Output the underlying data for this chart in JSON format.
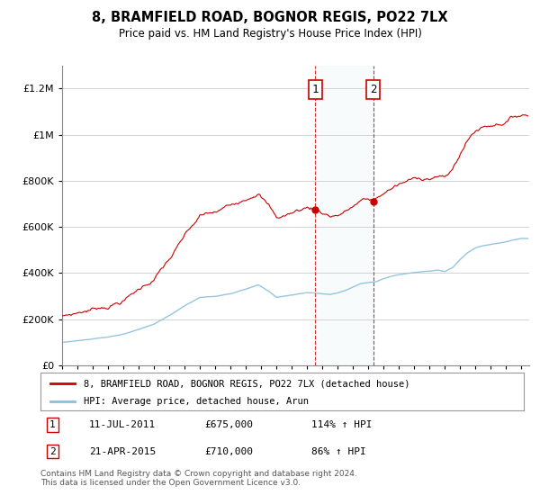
{
  "title": "8, BRAMFIELD ROAD, BOGNOR REGIS, PO22 7LX",
  "subtitle": "Price paid vs. HM Land Registry's House Price Index (HPI)",
  "hpi_label": "HPI: Average price, detached house, Arun",
  "price_label": "8, BRAMFIELD ROAD, BOGNOR REGIS, PO22 7LX (detached house)",
  "sale1_date": "11-JUL-2011",
  "sale1_price": 675000,
  "sale1_label": "114% ↑ HPI",
  "sale1_x": 2011.53,
  "sale2_date": "21-APR-2015",
  "sale2_price": 710000,
  "sale2_label": "86% ↑ HPI",
  "sale2_x": 2015.31,
  "footer": "Contains HM Land Registry data © Crown copyright and database right 2024.\nThis data is licensed under the Open Government Licence v3.0.",
  "hpi_color": "#8bbfdb",
  "price_color": "#cc0000",
  "ylim": [
    0,
    1300000
  ],
  "xlim_start": 1995,
  "xlim_end": 2025.5
}
